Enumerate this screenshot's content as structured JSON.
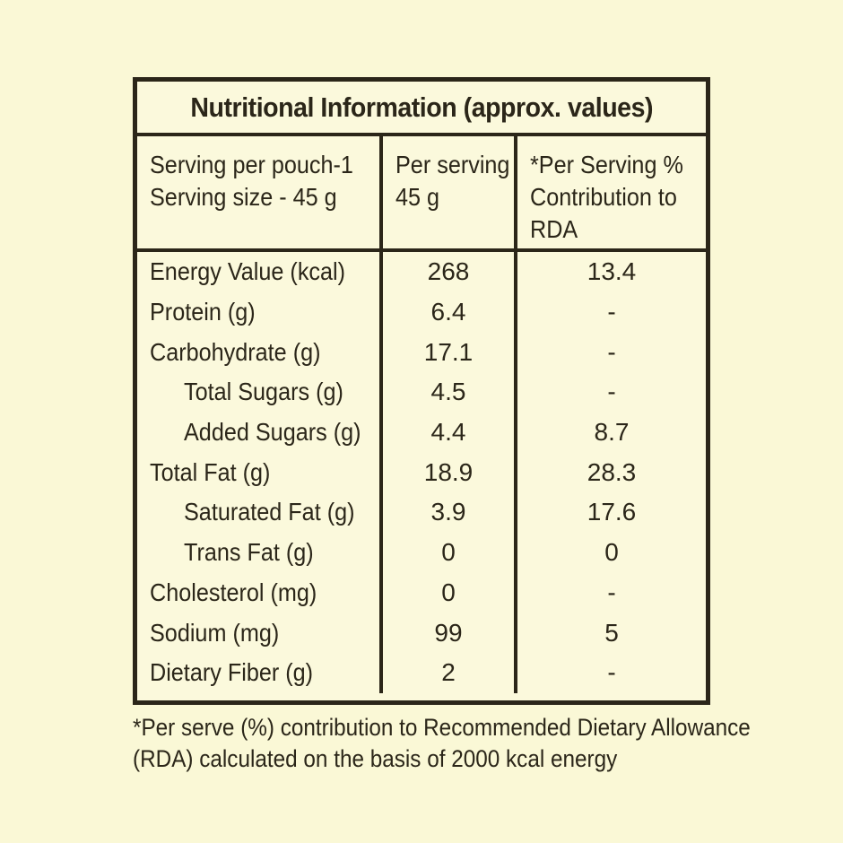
{
  "palette": {
    "page_background": "#FAF8D6",
    "table_background": "#FBF9DC",
    "border_and_text": "#2B2619"
  },
  "table": {
    "title": "Nutritional Information (approx. values)",
    "header": {
      "col1_lines": [
        "Serving per pouch-1",
        "Serving size - 45 g"
      ],
      "col2_lines": [
        "Per serving",
        "45 g"
      ],
      "col3_lines": [
        "*Per Serving %",
        "Contribution to",
        "RDA"
      ]
    },
    "rows": [
      {
        "label": "Energy Value (kcal)",
        "indent": false,
        "per_serving": "268",
        "rda": "13.4"
      },
      {
        "label": "Protein (g)",
        "indent": false,
        "per_serving": "6.4",
        "rda": "-"
      },
      {
        "label": "Carbohydrate (g)",
        "indent": false,
        "per_serving": "17.1",
        "rda": "-"
      },
      {
        "label": "Total Sugars (g)",
        "indent": true,
        "per_serving": "4.5",
        "rda": "-"
      },
      {
        "label": "Added Sugars (g)",
        "indent": true,
        "per_serving": "4.4",
        "rda": "8.7"
      },
      {
        "label": "Total Fat (g)",
        "indent": false,
        "per_serving": "18.9",
        "rda": "28.3"
      },
      {
        "label": "Saturated Fat (g)",
        "indent": true,
        "per_serving": "3.9",
        "rda": "17.6"
      },
      {
        "label": "Trans Fat (g)",
        "indent": true,
        "per_serving": "0",
        "rda": "0"
      },
      {
        "label": "Cholesterol (mg)",
        "indent": false,
        "per_serving": "0",
        "rda": "-"
      },
      {
        "label": "Sodium (mg)",
        "indent": false,
        "per_serving": "99",
        "rda": "5"
      },
      {
        "label": "Dietary Fiber (g)",
        "indent": false,
        "per_serving": "2",
        "rda": "-"
      }
    ],
    "footnote_lines": [
      "*Per serve (%) contribution to Recommended Dietary Allowance",
      "(RDA) calculated on the basis of 2000 kcal energy"
    ]
  }
}
